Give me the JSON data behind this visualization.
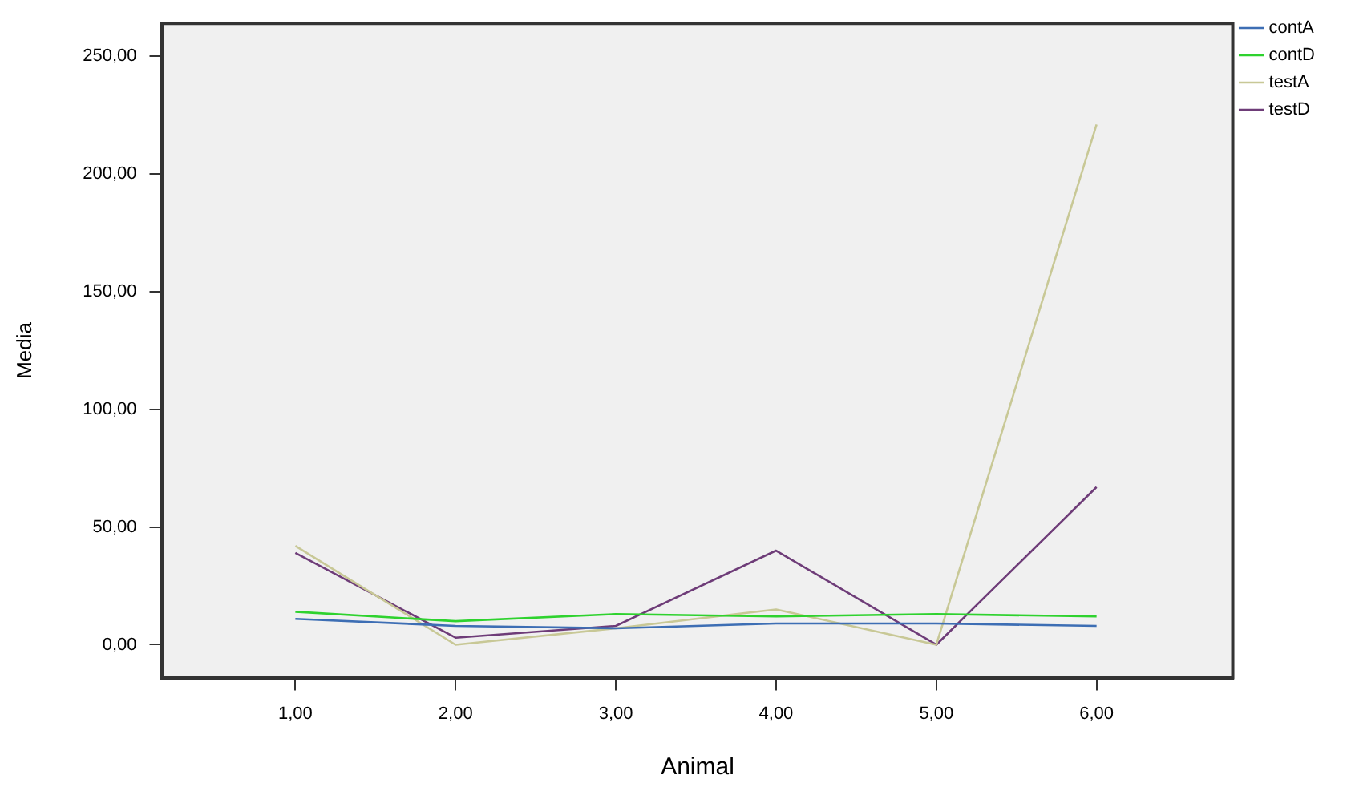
{
  "chart_data": {
    "type": "line",
    "xlabel": "Animal",
    "ylabel": "Media",
    "x": [
      1,
      2,
      3,
      4,
      5,
      6
    ],
    "series": [
      {
        "name": "contA",
        "color": "#3d6eb4",
        "values": [
          11,
          8,
          7,
          9,
          9,
          8
        ]
      },
      {
        "name": "contD",
        "color": "#2ed22e",
        "values": [
          14,
          10,
          13,
          12,
          13,
          12
        ]
      },
      {
        "name": "testA",
        "color": "#c8c896",
        "values": [
          42,
          0,
          7,
          15,
          0,
          221
        ]
      },
      {
        "name": "testD",
        "color": "#6e3c78",
        "values": [
          39,
          3,
          8,
          40,
          0,
          67
        ]
      }
    ],
    "xlim": [
      0.17,
      6.85
    ],
    "xticks": [
      {
        "value": 1,
        "label": "1,00"
      },
      {
        "value": 2,
        "label": "2,00"
      },
      {
        "value": 3,
        "label": "3,00"
      },
      {
        "value": 4,
        "label": "4,00"
      },
      {
        "value": 5,
        "label": "5,00"
      },
      {
        "value": 6,
        "label": "6,00"
      }
    ],
    "ylim": [
      -14,
      264
    ],
    "yticks": [
      {
        "value": 0,
        "label": "0,00"
      },
      {
        "value": 50,
        "label": "50,00"
      },
      {
        "value": 100,
        "label": "100,00"
      },
      {
        "value": 150,
        "label": "150,00"
      },
      {
        "value": 200,
        "label": "200,00"
      },
      {
        "value": 250,
        "label": "250,00"
      }
    ],
    "grid": false,
    "legend": "top right",
    "marker": "none",
    "line_style": "solid"
  }
}
